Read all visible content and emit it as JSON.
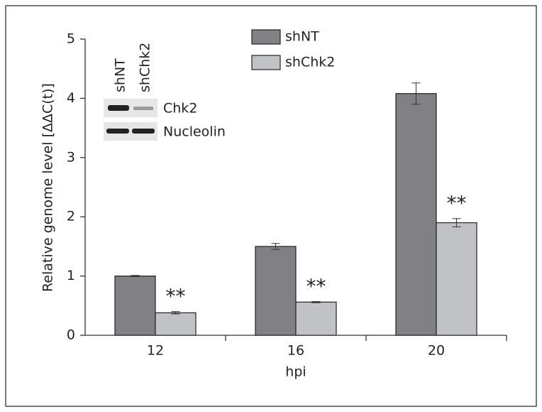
{
  "chart_data": {
    "type": "bar",
    "y_label": "Relative genome level [ΔΔC(t)]",
    "x_label": "hpi",
    "categories": [
      "12",
      "16",
      "20"
    ],
    "series": [
      {
        "name": "shNT",
        "color": "#808085",
        "values": [
          1.0,
          1.5,
          4.08
        ],
        "errors": [
          0.01,
          0.05,
          0.18
        ]
      },
      {
        "name": "shChk2",
        "color": "#c1c2c6",
        "values": [
          0.38,
          0.56,
          1.9
        ],
        "errors": [
          0.02,
          0.01,
          0.07
        ]
      }
    ],
    "annotations": [
      "**",
      "**",
      "**"
    ],
    "ylim": [
      0,
      5
    ],
    "yticks": [
      0,
      1,
      2,
      3,
      4,
      5
    ],
    "inset": {
      "lanes": [
        "shNT",
        "shChk2"
      ],
      "rows": [
        "Chk2",
        "Nucleolin"
      ]
    }
  }
}
